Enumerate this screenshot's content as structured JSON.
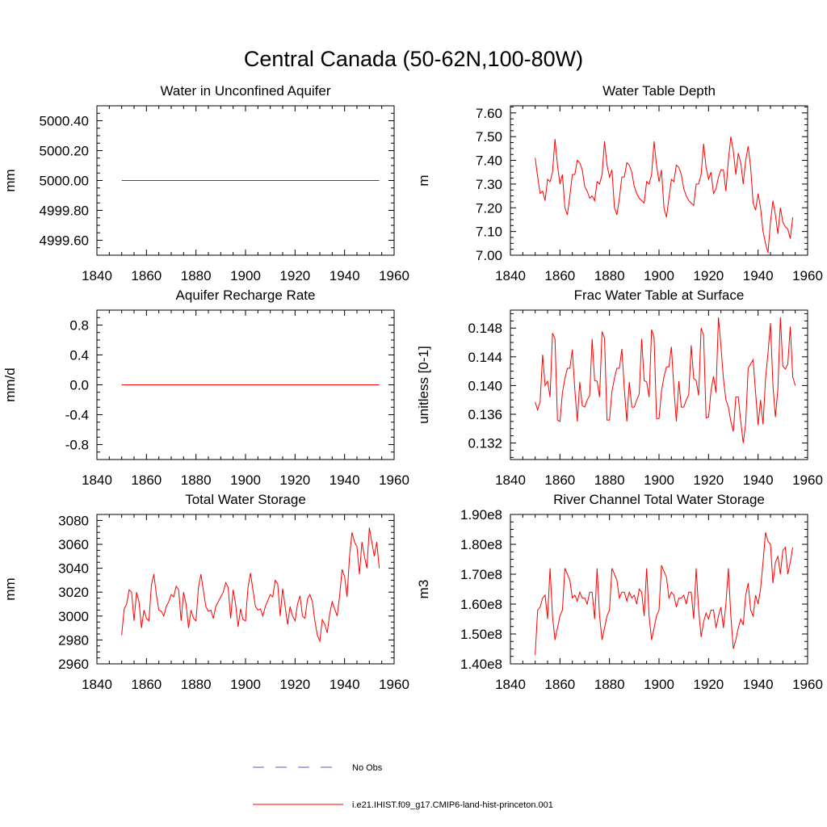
{
  "figure_title": "Central Canada (50-62N,100-80W)",
  "legend": [
    {
      "label": "No Obs",
      "color": "#5555cc",
      "style": "dashed"
    },
    {
      "label": "i.e21.IHIST.f09_g17.CMIP6-land-hist-princeton.001",
      "color": "#ff0000",
      "style": "solid"
    }
  ],
  "chart_data": [
    {
      "type": "line",
      "title": "Water in Unconfined Aquifer",
      "ylabel": "mm",
      "xlim": [
        1840,
        1960
      ],
      "ylim": [
        4999.5,
        5000.5
      ],
      "xticks": [
        1840,
        1860,
        1880,
        1900,
        1920,
        1940,
        1960
      ],
      "xtick_labels": [
        "1840",
        "1860",
        "1880",
        "1900",
        "1920",
        "1940",
        "1960"
      ],
      "yticks": [
        4999.6,
        4999.8,
        5000.0,
        5000.2,
        5000.4
      ],
      "ytick_labels": [
        "4999.60",
        "4999.80",
        "5000.00",
        "5000.20",
        "5000.40"
      ],
      "x_start": 1850,
      "series": [
        {
          "color": "#ff0000",
          "values": [
            5000.0,
            5000.0
          ]
        }
      ],
      "series_x": [
        1850,
        1954
      ]
    },
    {
      "type": "line",
      "title": "Water Table Depth",
      "ylabel": "m",
      "xlim": [
        1840,
        1960
      ],
      "ylim": [
        7.0,
        7.63
      ],
      "xticks": [
        1840,
        1860,
        1880,
        1900,
        1920,
        1940,
        1960
      ],
      "xtick_labels": [
        "1840",
        "1860",
        "1880",
        "1900",
        "1920",
        "1940",
        "1960"
      ],
      "yticks": [
        7.0,
        7.1,
        7.2,
        7.3,
        7.4,
        7.5,
        7.6
      ],
      "ytick_labels": [
        "7.00",
        "7.10",
        "7.20",
        "7.30",
        "7.40",
        "7.50",
        "7.60"
      ],
      "x_start": 1850,
      "series": [
        {
          "color": "#ff0000",
          "values": [
            7.41,
            7.33,
            7.26,
            7.27,
            7.23,
            7.32,
            7.31,
            7.35,
            7.49,
            7.38,
            7.3,
            7.34,
            7.2,
            7.17,
            7.25,
            7.34,
            7.34,
            7.4,
            7.39,
            7.36,
            7.29,
            7.27,
            7.24,
            7.25,
            7.23,
            7.31,
            7.3,
            7.34,
            7.48,
            7.38,
            7.33,
            7.36,
            7.2,
            7.17,
            7.24,
            7.33,
            7.33,
            7.39,
            7.38,
            7.35,
            7.29,
            7.26,
            7.24,
            7.23,
            7.22,
            7.31,
            7.3,
            7.34,
            7.48,
            7.38,
            7.31,
            7.36,
            7.2,
            7.16,
            7.24,
            7.32,
            7.31,
            7.38,
            7.37,
            7.34,
            7.28,
            7.25,
            7.23,
            7.22,
            7.21,
            7.3,
            7.3,
            7.34,
            7.47,
            7.37,
            7.32,
            7.35,
            7.26,
            7.28,
            7.33,
            7.36,
            7.36,
            7.27,
            7.4,
            7.5,
            7.44,
            7.34,
            7.43,
            7.39,
            7.3,
            7.4,
            7.46,
            7.37,
            7.22,
            7.19,
            7.26,
            7.2,
            7.1,
            7.05,
            7.01,
            7.14,
            7.23,
            7.17,
            7.09,
            7.2,
            7.14,
            7.12,
            7.11,
            7.07,
            7.16
          ]
        }
      ]
    },
    {
      "type": "line",
      "title": "Aquifer Recharge Rate",
      "ylabel": "mm/d",
      "xlim": [
        1840,
        1960
      ],
      "ylim": [
        -1.0,
        1.0
      ],
      "xticks": [
        1840,
        1860,
        1880,
        1900,
        1920,
        1940,
        1960
      ],
      "xtick_labels": [
        "1840",
        "1860",
        "1880",
        "1900",
        "1920",
        "1940",
        "1960"
      ],
      "yticks": [
        -0.8,
        -0.4,
        0.0,
        0.4,
        0.8
      ],
      "ytick_labels": [
        "-0.8",
        "-0.4",
        "0.0",
        "0.4",
        "0.8"
      ],
      "x_start": 1850,
      "series": [
        {
          "color": "#ff0000",
          "values": [
            0.0,
            0.0
          ]
        }
      ],
      "series_x": [
        1850,
        1954
      ]
    },
    {
      "type": "line",
      "title": "Frac Water Table at Surface",
      "ylabel": "unitless [0-1]",
      "xlim": [
        1840,
        1960
      ],
      "ylim": [
        0.1297,
        0.1505
      ],
      "xticks": [
        1840,
        1860,
        1880,
        1900,
        1920,
        1940,
        1960
      ],
      "xtick_labels": [
        "1840",
        "1860",
        "1880",
        "1900",
        "1920",
        "1940",
        "1960"
      ],
      "yticks": [
        0.132,
        0.136,
        0.14,
        0.144,
        0.148
      ],
      "ytick_labels": [
        "0.132",
        "0.136",
        "0.140",
        "0.144",
        "0.148"
      ],
      "x_start": 1850,
      "series": [
        {
          "color": "#ff0000",
          "values": [
            0.1377,
            0.1366,
            0.1378,
            0.1443,
            0.14,
            0.1406,
            0.1384,
            0.1473,
            0.1465,
            0.1352,
            0.135,
            0.139,
            0.141,
            0.1424,
            0.1424,
            0.145,
            0.1395,
            0.135,
            0.1405,
            0.1372,
            0.137,
            0.138,
            0.1386,
            0.1465,
            0.1407,
            0.1406,
            0.1384,
            0.1475,
            0.1466,
            0.1352,
            0.1352,
            0.1392,
            0.141,
            0.1424,
            0.1424,
            0.1451,
            0.1395,
            0.135,
            0.1405,
            0.137,
            0.137,
            0.138,
            0.1388,
            0.1465,
            0.1407,
            0.1405,
            0.1384,
            0.1478,
            0.1467,
            0.1354,
            0.1354,
            0.1392,
            0.1412,
            0.1426,
            0.1426,
            0.1454,
            0.1396,
            0.135,
            0.1406,
            0.137,
            0.137,
            0.138,
            0.1387,
            0.1456,
            0.141,
            0.1407,
            0.1386,
            0.148,
            0.147,
            0.1355,
            0.1356,
            0.1393,
            0.1413,
            0.139,
            0.1495,
            0.1455,
            0.141,
            0.138,
            0.137,
            0.135,
            0.1336,
            0.1384,
            0.1384,
            0.135,
            0.132,
            0.1348,
            0.1424,
            0.143,
            0.1436,
            0.139,
            0.1345,
            0.138,
            0.1346,
            0.1409,
            0.1445,
            0.1487,
            0.14,
            0.1356,
            0.1395,
            0.1495,
            0.1427,
            0.1423,
            0.143,
            0.1482,
            0.1412,
            0.14
          ]
        }
      ]
    },
    {
      "type": "line",
      "title": "Total Water Storage",
      "ylabel": "mm",
      "xlim": [
        1840,
        1960
      ],
      "ylim": [
        2960,
        3085
      ],
      "xticks": [
        1840,
        1860,
        1880,
        1900,
        1920,
        1940,
        1960
      ],
      "xtick_labels": [
        "1840",
        "1860",
        "1880",
        "1900",
        "1920",
        "1940",
        "1960"
      ],
      "yticks": [
        2960,
        2980,
        3000,
        3020,
        3040,
        3060,
        3080
      ],
      "ytick_labels": [
        "2960",
        "2980",
        "3000",
        "3020",
        "3040",
        "3060",
        "3080"
      ],
      "x_start": 1850,
      "series": [
        {
          "color": "#ff0000",
          "values": [
            2984,
            3006,
            3010,
            3022,
            3020,
            2996,
            3020,
            3012,
            2990,
            3005,
            2998,
            2996,
            3026,
            3035,
            3018,
            3005,
            3004,
            3000,
            3008,
            3012,
            3018,
            3016,
            3025,
            3022,
            2996,
            3020,
            3010,
            2990,
            3005,
            2998,
            2996,
            3024,
            3035,
            3021,
            3008,
            3004,
            3005,
            2998,
            3008,
            3012,
            3016,
            3020,
            3028,
            3024,
            2998,
            3022,
            3010,
            2991,
            3006,
            2997,
            2996,
            3024,
            3036,
            3022,
            3008,
            3005,
            3006,
            3000,
            3008,
            3013,
            3018,
            3016,
            3030,
            3027,
            3000,
            3023,
            3008,
            2993,
            3008,
            3000,
            2996,
            3010,
            3017,
            3000,
            2998,
            3014,
            3018,
            3012,
            2996,
            2984,
            2979,
            2997,
            2993,
            2986,
            3002,
            3012,
            3006,
            3000,
            3017,
            3039,
            3033,
            3016,
            3050,
            3070,
            3062,
            3058,
            3035,
            3062,
            3050,
            3040,
            3074,
            3062,
            3050,
            3062,
            3040
          ]
        }
      ]
    },
    {
      "type": "line",
      "title": "River Channel Total Water Storage",
      "ylabel": "m3",
      "xlim": [
        1840,
        1960
      ],
      "ylim": [
        140000000.0,
        190000000.0
      ],
      "xticks": [
        1840,
        1860,
        1880,
        1900,
        1920,
        1940,
        1960
      ],
      "xtick_labels": [
        "1840",
        "1860",
        "1880",
        "1900",
        "1920",
        "1940",
        "1960"
      ],
      "yticks": [
        140000000.0,
        150000000.0,
        160000000.0,
        170000000.0,
        180000000.0,
        190000000.0
      ],
      "ytick_labels": [
        "1.40e8",
        "1.50e8",
        "1.60e8",
        "1.70e8",
        "1.80e8",
        "1.90e8"
      ],
      "x_start": 1850,
      "series": [
        {
          "color": "#ff0000",
          "values": [
            143000000.0,
            158000000.0,
            159000000.0,
            162000000.0,
            163000000.0,
            155000000.0,
            172000000.0,
            156000000.0,
            148000000.0,
            152000000.0,
            156000000.0,
            158000000.0,
            172000000.0,
            170000000.0,
            168000000.0,
            162000000.0,
            163000000.0,
            161000000.0,
            164000000.0,
            162000000.0,
            162000000.0,
            160000000.0,
            164000000.0,
            164000000.0,
            155000000.0,
            172000000.0,
            156000000.0,
            148000000.0,
            152000000.0,
            156000000.0,
            158000000.0,
            172000000.0,
            170000000.0,
            168000000.0,
            162000000.0,
            164000000.0,
            164000000.0,
            161000000.0,
            164000000.0,
            162000000.0,
            163000000.0,
            160000000.0,
            165000000.0,
            164000000.0,
            156000000.0,
            172000000.0,
            156000000.0,
            148000000.0,
            152000000.0,
            156000000.0,
            158000000.0,
            173000000.0,
            171000000.0,
            169000000.0,
            162000000.0,
            164000000.0,
            163000000.0,
            159000000.0,
            162000000.0,
            162000000.0,
            163000000.0,
            160000000.0,
            164000000.0,
            164000000.0,
            155000000.0,
            172000000.0,
            158000000.0,
            149000000.0,
            154000000.0,
            157000000.0,
            155000000.0,
            158000000.0,
            158000000.0,
            152000000.0,
            156000000.0,
            159000000.0,
            152000000.0,
            160000000.0,
            172000000.0,
            156000000.0,
            145000000.0,
            148000000.0,
            152000000.0,
            155000000.0,
            153000000.0,
            163000000.0,
            167000000.0,
            158000000.0,
            156000000.0,
            163000000.0,
            160000000.0,
            165000000.0,
            174000000.0,
            184000000.0,
            181000000.0,
            180000000.0,
            167000000.0,
            174000000.0,
            176000000.0,
            170000000.0,
            178000000.0,
            179000000.0,
            170000000.0,
            174000000.0,
            179000000.0
          ]
        }
      ]
    }
  ]
}
